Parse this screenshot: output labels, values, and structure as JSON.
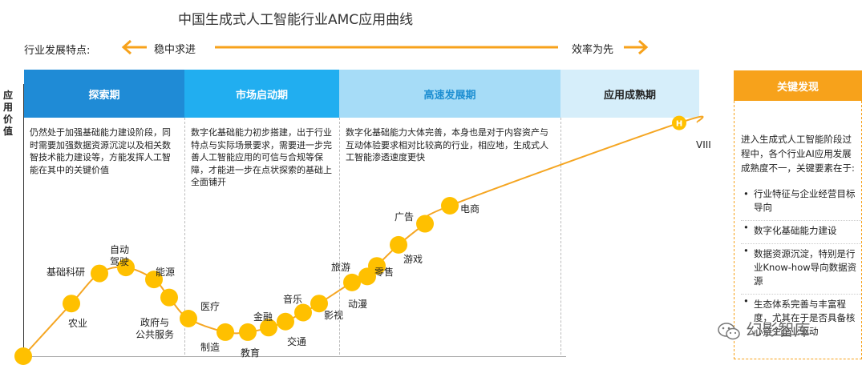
{
  "title": "中国生成式人工智能行业AMC应用曲线",
  "features": {
    "label": "行业发展特点:",
    "left": "稳中求进",
    "right": "效率为先"
  },
  "y_axis_label": "应用价值",
  "stages": [
    {
      "name": "探索期",
      "desc": "仍然处于加强基础能力建设阶段，同时需要加强数据资源沉淀以及相关数智技术能力建设等，方能发挥人工智能在其中的关键价值",
      "bg": "#1f8bd6",
      "color": "#ffffff"
    },
    {
      "name": "市场启动期",
      "desc": "数字化基础能力初步搭建，出于行业特点与实际场景要求，需要进一步完善人工智能应用的可信与合规等保障，才能进一步在点状探索的基础上全面铺开",
      "bg": "#21aef0",
      "color": "#ffffff"
    },
    {
      "name": "高速发展期",
      "desc": "数字化基础能力大体完善，本身也是对于内容资产与互动体验要求相对比较高的行业，相应地，生成式人工智能渗透速度更快",
      "bg": "#a6dcf7",
      "color": "#1e8fd2"
    },
    {
      "name": "应用成熟期",
      "desc": "",
      "bg": "#d6eefa",
      "color": "#222222"
    }
  ],
  "key_findings": {
    "title": "关键发现",
    "intro": "进入生成式人工智能阶段过程中，各个行业AI应用发展成熟度不一，关键要素在于:",
    "items": [
      "行业特征与企业经营目标导向",
      "数字化基础能力建设",
      "数据资源沉淀，特别是行业Know-how导向数据资源",
      "生态体系完善与丰富程度，尤其在于是否具备核心链主企业驱动"
    ]
  },
  "colors": {
    "accent": "#f7a21b",
    "curve": "#f5a623",
    "dot": "#ffc000"
  },
  "watermark": "幻影智库",
  "chart_data": {
    "type": "line",
    "title": "中国生成式人工智能行业AMC应用曲线",
    "ylabel": "应用价值",
    "xlabel": "",
    "description_axes": "x: adoption stage progression; y: application value (qualitative)",
    "points": [
      {
        "label": "",
        "stage": "探索期",
        "value": 0
      },
      {
        "label": "农业",
        "stage": "探索期",
        "value": 3.5
      },
      {
        "label": "基础科研",
        "stage": "探索期",
        "value": 5.5
      },
      {
        "label": "自动驾驶",
        "stage": "探索期",
        "value": 5.9
      },
      {
        "label": "能源",
        "stage": "探索期",
        "value": 5.1
      },
      {
        "label": "政府与公共服务",
        "stage": "探索期",
        "value": 3.9
      },
      {
        "label": "医疗",
        "stage": "探索期",
        "value": 2.5
      },
      {
        "label": "制造",
        "stage": "市场启动期",
        "value": 1.6
      },
      {
        "label": "教育",
        "stage": "市场启动期",
        "value": 1.6
      },
      {
        "label": "金融",
        "stage": "市场启动期",
        "value": 1.9
      },
      {
        "label": "交通",
        "stage": "市场启动期",
        "value": 2.3
      },
      {
        "label": "音乐",
        "stage": "市场启动期",
        "value": 2.9
      },
      {
        "label": "影视",
        "stage": "高速发展期",
        "value": 3.5
      },
      {
        "label": "动漫",
        "stage": "高速发展期",
        "value": 4.9
      },
      {
        "label": "旅游",
        "stage": "高速发展期",
        "value": 5.3
      },
      {
        "label": "零售",
        "stage": "高速发展期",
        "value": 6.0
      },
      {
        "label": "游戏",
        "stage": "高速发展期",
        "value": 7.4
      },
      {
        "label": "广告",
        "stage": "高速发展期",
        "value": 8.8
      },
      {
        "label": "电商",
        "stage": "高速发展期",
        "value": 10.0
      },
      {
        "label": "H",
        "stage": "应用成熟期",
        "value": 15.5
      }
    ],
    "end_label": "VIII"
  }
}
